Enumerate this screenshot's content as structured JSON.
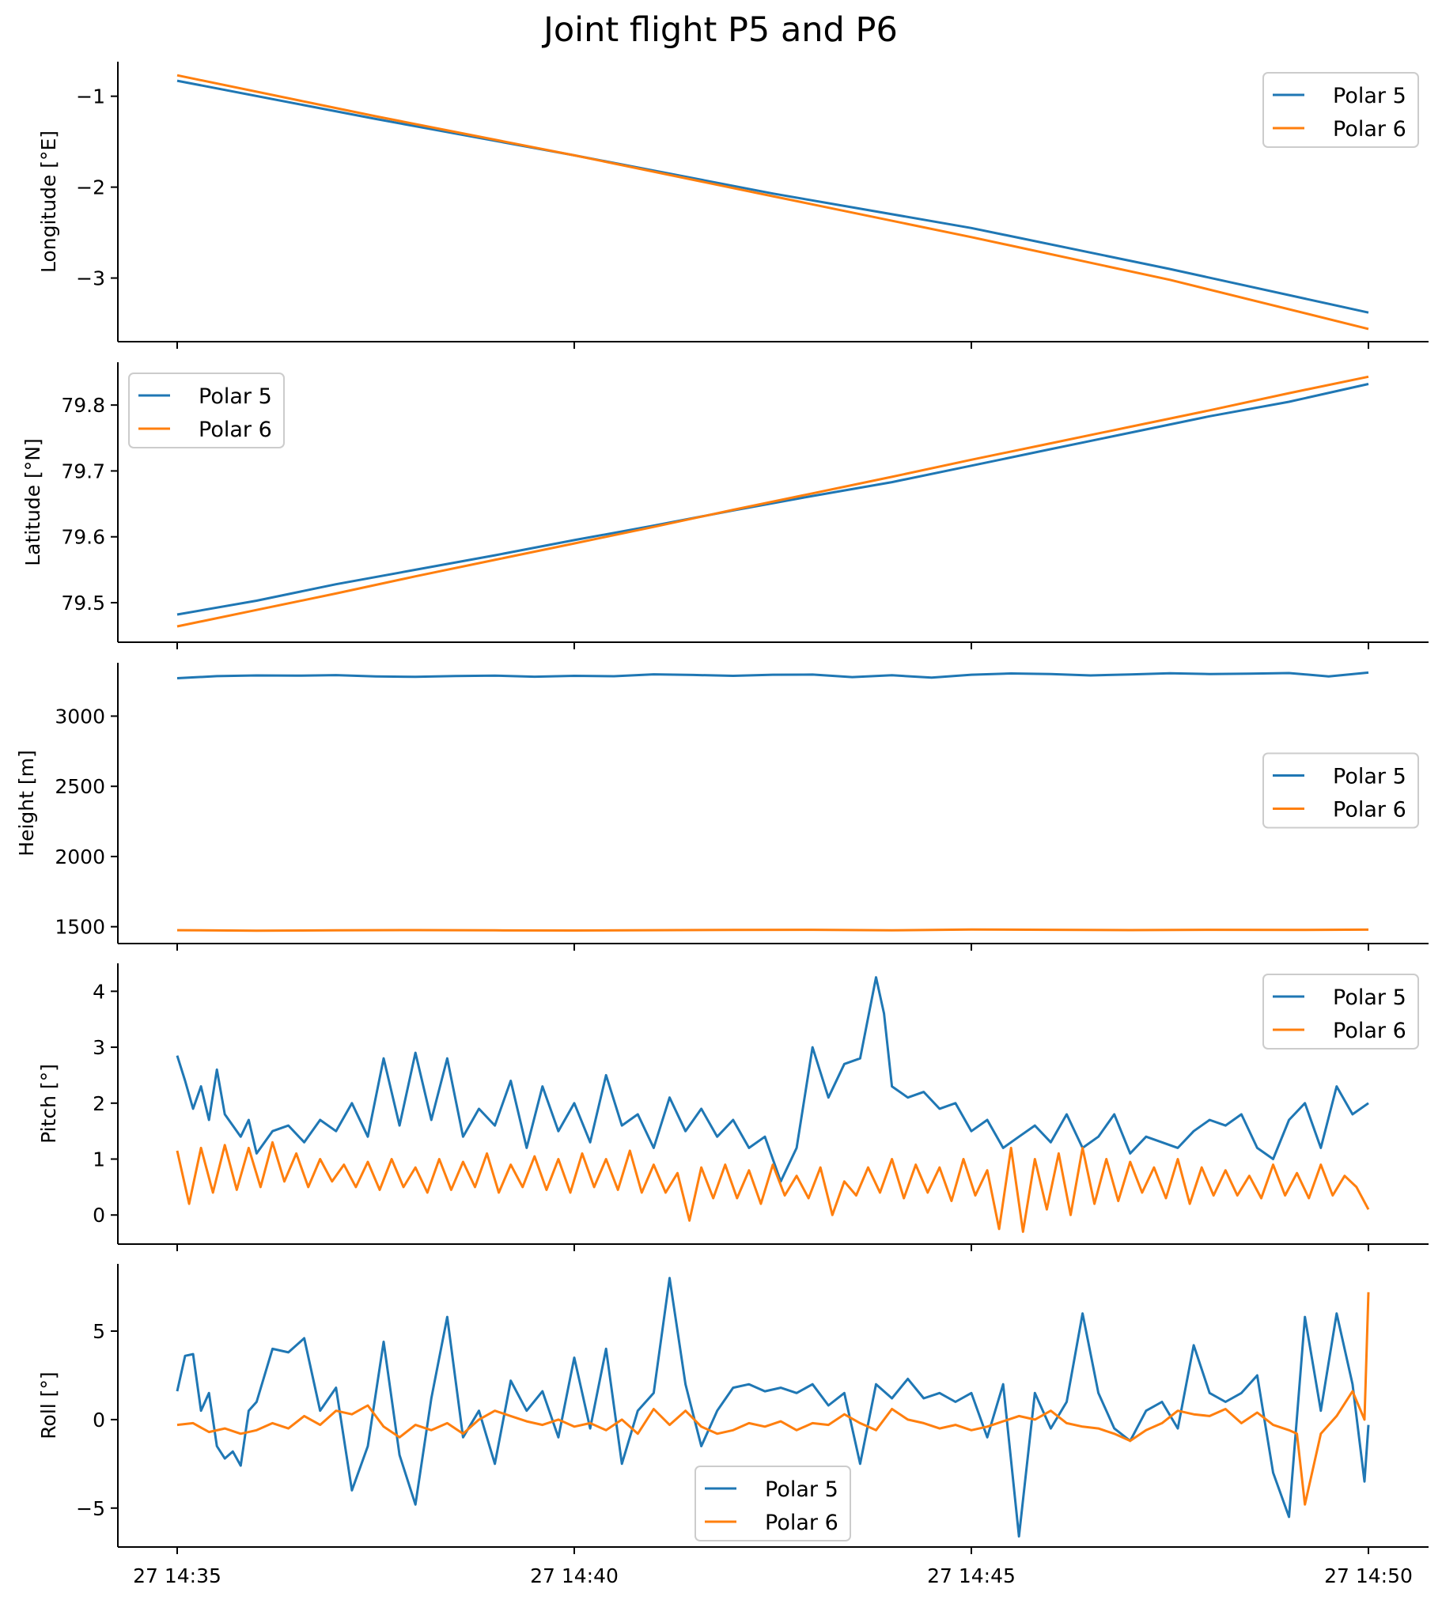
{
  "figure": {
    "title": "Joint flight P5 and P6"
  },
  "colors": {
    "polar5": "#1f77b4",
    "polar6": "#ff7f0e"
  },
  "x_axis": {
    "type": "time",
    "range": [
      "27 14:35",
      "27 14:50"
    ],
    "tick_labels": [
      "27 14:35",
      "27 14:40",
      "27 14:45",
      "27 14:50"
    ],
    "tick_values": [
      0,
      5,
      10,
      15
    ]
  },
  "chart_data": [
    {
      "type": "line",
      "ylabel": "Longitude [°E]",
      "ylim": [
        -3.7,
        -0.62
      ],
      "yticks": [
        -3,
        -2,
        -1
      ],
      "ytick_labels": [
        "−3",
        "−2",
        "−1"
      ],
      "legend": "top-right",
      "series": [
        {
          "name": "Polar 5",
          "x": [
            0,
            2.5,
            5,
            7.5,
            10,
            12.5,
            15
          ],
          "values": [
            -0.83,
            -1.25,
            -1.65,
            -2.07,
            -2.45,
            -2.9,
            -3.38
          ]
        },
        {
          "name": "Polar 6",
          "x": [
            0,
            2.5,
            5,
            7.5,
            10,
            12.5,
            15
          ],
          "values": [
            -0.77,
            -1.22,
            -1.65,
            -2.1,
            -2.55,
            -3.02,
            -3.56
          ]
        }
      ]
    },
    {
      "type": "line",
      "ylabel": "Latitude [°N]",
      "ylim": [
        79.44,
        79.865
      ],
      "yticks": [
        79.5,
        79.6,
        79.7,
        79.8
      ],
      "ytick_labels": [
        "79.5",
        "79.6",
        "79.7",
        "79.8"
      ],
      "legend": "top-left",
      "series": [
        {
          "name": "Polar 5",
          "x": [
            0,
            1,
            2,
            3,
            4,
            5,
            6,
            7,
            8,
            9,
            10,
            11,
            12,
            13,
            14,
            15
          ],
          "values": [
            79.482,
            79.503,
            79.528,
            79.55,
            79.572,
            79.595,
            79.617,
            79.64,
            79.662,
            79.683,
            79.708,
            79.733,
            79.758,
            79.783,
            79.805,
            79.832
          ]
        },
        {
          "name": "Polar 6",
          "x": [
            0,
            1,
            2,
            3,
            4,
            5,
            6,
            7,
            8,
            9,
            10,
            11,
            12,
            13,
            14,
            15
          ],
          "values": [
            79.464,
            79.489,
            79.514,
            79.54,
            79.565,
            79.59,
            79.615,
            79.641,
            79.666,
            79.691,
            79.717,
            79.742,
            79.767,
            79.792,
            79.818,
            79.843
          ]
        }
      ]
    },
    {
      "type": "line",
      "ylabel": "Height [m]",
      "ylim": [
        1380,
        3380
      ],
      "yticks": [
        1500,
        2000,
        2500,
        3000
      ],
      "ytick_labels": [
        "1500",
        "2000",
        "2500",
        "3000"
      ],
      "legend": "center-right",
      "series": [
        {
          "name": "Polar 5",
          "x": [
            0,
            0.5,
            1,
            1.5,
            2,
            2.5,
            3,
            3.5,
            4,
            4.5,
            5,
            5.5,
            6,
            6.5,
            7,
            7.5,
            8,
            8.5,
            9,
            9.5,
            10,
            10.5,
            11,
            11.5,
            12,
            12.5,
            13,
            13.5,
            14,
            14.5,
            15
          ],
          "values": [
            3270,
            3285,
            3290,
            3288,
            3292,
            3283,
            3280,
            3286,
            3289,
            3281,
            3287,
            3284,
            3298,
            3293,
            3287,
            3295,
            3296,
            3278,
            3291,
            3274,
            3295,
            3304,
            3300,
            3290,
            3297,
            3305,
            3300,
            3302,
            3307,
            3283,
            3310
          ]
        },
        {
          "name": "Polar 6",
          "x": [
            0,
            1,
            2,
            3,
            4,
            5,
            6,
            7,
            8,
            9,
            10,
            11,
            12,
            13,
            14,
            15
          ],
          "values": [
            1475,
            1472,
            1474,
            1476,
            1474,
            1473,
            1475,
            1477,
            1478,
            1474,
            1480,
            1478,
            1476,
            1478,
            1477,
            1479
          ]
        }
      ]
    },
    {
      "type": "line",
      "ylabel": "Pitch [°]",
      "ylim": [
        -0.52,
        4.5
      ],
      "yticks": [
        0,
        1,
        2,
        3,
        4
      ],
      "ytick_labels": [
        "0",
        "1",
        "2",
        "3",
        "4"
      ],
      "legend": "top-right",
      "series": [
        {
          "name": "Polar 5",
          "x": [
            0,
            0.1,
            0.2,
            0.3,
            0.4,
            0.5,
            0.6,
            0.7,
            0.8,
            0.9,
            1.0,
            1.2,
            1.4,
            1.6,
            1.8,
            2.0,
            2.2,
            2.4,
            2.6,
            2.8,
            3.0,
            3.2,
            3.4,
            3.6,
            3.8,
            4.0,
            4.2,
            4.4,
            4.6,
            4.8,
            5.0,
            5.2,
            5.4,
            5.6,
            5.8,
            6.0,
            6.2,
            6.4,
            6.6,
            6.8,
            7.0,
            7.2,
            7.4,
            7.6,
            7.8,
            8.0,
            8.2,
            8.4,
            8.6,
            8.8,
            8.9,
            9.0,
            9.2,
            9.4,
            9.6,
            9.8,
            10.0,
            10.2,
            10.4,
            10.6,
            10.8,
            11.0,
            11.2,
            11.4,
            11.6,
            11.8,
            12.0,
            12.2,
            12.4,
            12.6,
            12.8,
            13.0,
            13.2,
            13.4,
            13.6,
            13.8,
            14.0,
            14.2,
            14.4,
            14.6,
            14.8,
            15.0
          ],
          "values": [
            2.85,
            2.4,
            1.9,
            2.3,
            1.7,
            2.6,
            1.8,
            1.6,
            1.4,
            1.7,
            1.1,
            1.5,
            1.6,
            1.3,
            1.7,
            1.5,
            2.0,
            1.4,
            2.8,
            1.6,
            2.9,
            1.7,
            2.8,
            1.4,
            1.9,
            1.6,
            2.4,
            1.2,
            2.3,
            1.5,
            2.0,
            1.3,
            2.5,
            1.6,
            1.8,
            1.2,
            2.1,
            1.5,
            1.9,
            1.4,
            1.7,
            1.2,
            1.4,
            0.6,
            1.2,
            3.0,
            2.1,
            2.7,
            2.8,
            4.25,
            3.6,
            2.3,
            2.1,
            2.2,
            1.9,
            2.0,
            1.5,
            1.7,
            1.2,
            1.4,
            1.6,
            1.3,
            1.8,
            1.2,
            1.4,
            1.8,
            1.1,
            1.4,
            1.3,
            1.2,
            1.5,
            1.7,
            1.6,
            1.8,
            1.2,
            1.0,
            1.7,
            2.0,
            1.2,
            2.3,
            1.8,
            2.0
          ]
        },
        {
          "name": "Polar 6",
          "x": [
            0,
            0.15,
            0.3,
            0.45,
            0.6,
            0.75,
            0.9,
            1.05,
            1.2,
            1.35,
            1.5,
            1.65,
            1.8,
            1.95,
            2.1,
            2.25,
            2.4,
            2.55,
            2.7,
            2.85,
            3.0,
            3.15,
            3.3,
            3.45,
            3.6,
            3.75,
            3.9,
            4.05,
            4.2,
            4.35,
            4.5,
            4.65,
            4.8,
            4.95,
            5.1,
            5.25,
            5.4,
            5.55,
            5.7,
            5.85,
            6.0,
            6.15,
            6.3,
            6.45,
            6.6,
            6.75,
            6.9,
            7.05,
            7.2,
            7.35,
            7.5,
            7.65,
            7.8,
            7.95,
            8.1,
            8.25,
            8.4,
            8.55,
            8.7,
            8.85,
            9.0,
            9.15,
            9.3,
            9.45,
            9.6,
            9.75,
            9.9,
            10.05,
            10.2,
            10.35,
            10.5,
            10.65,
            10.8,
            10.95,
            11.1,
            11.25,
            11.4,
            11.55,
            11.7,
            11.85,
            12.0,
            12.15,
            12.3,
            12.45,
            12.6,
            12.75,
            12.9,
            13.05,
            13.2,
            13.35,
            13.5,
            13.65,
            13.8,
            13.95,
            14.1,
            14.25,
            14.4,
            14.55,
            14.7,
            14.85,
            15.0
          ],
          "values": [
            1.15,
            0.2,
            1.2,
            0.4,
            1.25,
            0.45,
            1.2,
            0.5,
            1.3,
            0.6,
            1.1,
            0.5,
            1.0,
            0.6,
            0.9,
            0.5,
            0.95,
            0.45,
            1.0,
            0.5,
            0.85,
            0.4,
            1.0,
            0.45,
            0.95,
            0.5,
            1.1,
            0.4,
            0.9,
            0.5,
            1.05,
            0.45,
            1.0,
            0.4,
            1.1,
            0.5,
            1.0,
            0.45,
            1.15,
            0.4,
            0.9,
            0.4,
            0.75,
            -0.1,
            0.85,
            0.3,
            0.9,
            0.3,
            0.8,
            0.2,
            0.9,
            0.35,
            0.7,
            0.3,
            0.85,
            0.0,
            0.6,
            0.35,
            0.85,
            0.4,
            1.0,
            0.3,
            0.9,
            0.4,
            0.85,
            0.25,
            1.0,
            0.35,
            0.8,
            -0.25,
            1.2,
            -0.3,
            1.0,
            0.1,
            1.1,
            0.0,
            1.2,
            0.2,
            1.0,
            0.25,
            0.95,
            0.4,
            0.85,
            0.3,
            1.0,
            0.2,
            0.85,
            0.35,
            0.8,
            0.35,
            0.7,
            0.3,
            0.9,
            0.35,
            0.75,
            0.3,
            0.9,
            0.35,
            0.7,
            0.5,
            0.1
          ]
        }
      ]
    },
    {
      "type": "line",
      "ylabel": "Roll [°]",
      "ylim": [
        -7.2,
        8.8
      ],
      "yticks": [
        -5,
        0,
        5
      ],
      "ytick_labels": [
        "−5",
        "0",
        "5"
      ],
      "legend": "lower-center",
      "series": [
        {
          "name": "Polar 5",
          "x": [
            0,
            0.1,
            0.2,
            0.3,
            0.4,
            0.5,
            0.6,
            0.7,
            0.8,
            0.9,
            1.0,
            1.2,
            1.4,
            1.6,
            1.8,
            2.0,
            2.2,
            2.4,
            2.6,
            2.8,
            3.0,
            3.2,
            3.4,
            3.6,
            3.8,
            4.0,
            4.2,
            4.4,
            4.6,
            4.8,
            5.0,
            5.2,
            5.4,
            5.6,
            5.8,
            6.0,
            6.2,
            6.4,
            6.6,
            6.8,
            7.0,
            7.2,
            7.4,
            7.6,
            7.8,
            8.0,
            8.2,
            8.4,
            8.6,
            8.8,
            9.0,
            9.2,
            9.4,
            9.6,
            9.8,
            10.0,
            10.2,
            10.4,
            10.6,
            10.8,
            11.0,
            11.2,
            11.4,
            11.6,
            11.8,
            12.0,
            12.2,
            12.4,
            12.6,
            12.8,
            13.0,
            13.2,
            13.4,
            13.6,
            13.8,
            14.0,
            14.2,
            14.4,
            14.6,
            14.8,
            14.95,
            15.0
          ],
          "values": [
            1.6,
            3.6,
            3.7,
            0.5,
            1.5,
            -1.5,
            -2.2,
            -1.8,
            -2.6,
            0.5,
            1.0,
            4.0,
            3.8,
            4.6,
            0.5,
            1.8,
            -4.0,
            -1.5,
            4.4,
            -2.0,
            -4.8,
            1.2,
            5.8,
            -1.0,
            0.5,
            -2.5,
            2.2,
            0.5,
            1.6,
            -1.0,
            3.5,
            -0.5,
            4.0,
            -2.5,
            0.5,
            1.5,
            8.0,
            2.0,
            -1.5,
            0.5,
            1.8,
            2.0,
            1.6,
            1.8,
            1.5,
            2.0,
            0.8,
            1.5,
            -2.5,
            2.0,
            1.2,
            2.3,
            1.2,
            1.5,
            1.0,
            1.5,
            -1.0,
            2.0,
            -6.6,
            1.5,
            -0.5,
            1.0,
            6.0,
            1.5,
            -0.5,
            -1.2,
            0.5,
            1.0,
            -0.5,
            4.2,
            1.5,
            1.0,
            1.5,
            2.5,
            -3.0,
            -5.5,
            5.8,
            0.5,
            6.0,
            2.0,
            -3.5,
            -0.3
          ]
        },
        {
          "name": "Polar 6",
          "x": [
            0,
            0.2,
            0.4,
            0.6,
            0.8,
            1.0,
            1.2,
            1.4,
            1.6,
            1.8,
            2.0,
            2.2,
            2.4,
            2.6,
            2.8,
            3.0,
            3.2,
            3.4,
            3.6,
            3.8,
            4.0,
            4.2,
            4.4,
            4.6,
            4.8,
            5.0,
            5.2,
            5.4,
            5.6,
            5.8,
            6.0,
            6.2,
            6.4,
            6.6,
            6.8,
            7.0,
            7.2,
            7.4,
            7.6,
            7.8,
            8.0,
            8.2,
            8.4,
            8.6,
            8.8,
            9.0,
            9.2,
            9.4,
            9.6,
            9.8,
            10.0,
            10.2,
            10.4,
            10.6,
            10.8,
            11.0,
            11.2,
            11.4,
            11.6,
            11.8,
            12.0,
            12.2,
            12.4,
            12.6,
            12.8,
            13.0,
            13.2,
            13.4,
            13.6,
            13.8,
            14.0,
            14.1,
            14.2,
            14.4,
            14.6,
            14.8,
            14.95,
            15.0
          ],
          "values": [
            -0.3,
            -0.2,
            -0.7,
            -0.5,
            -0.8,
            -0.6,
            -0.2,
            -0.5,
            0.2,
            -0.3,
            0.5,
            0.3,
            0.8,
            -0.4,
            -1.0,
            -0.3,
            -0.6,
            -0.2,
            -0.8,
            0.0,
            0.5,
            0.2,
            -0.1,
            -0.3,
            0.0,
            -0.4,
            -0.2,
            -0.6,
            0.0,
            -0.8,
            0.6,
            -0.3,
            0.5,
            -0.4,
            -0.8,
            -0.6,
            -0.2,
            -0.4,
            -0.1,
            -0.6,
            -0.2,
            -0.3,
            0.3,
            -0.2,
            -0.6,
            0.6,
            0.0,
            -0.2,
            -0.5,
            -0.3,
            -0.6,
            -0.4,
            -0.1,
            0.2,
            0.0,
            0.5,
            -0.2,
            -0.4,
            -0.5,
            -0.8,
            -1.2,
            -0.6,
            -0.2,
            0.5,
            0.3,
            0.2,
            0.6,
            -0.2,
            0.4,
            -0.3,
            -0.6,
            -0.8,
            -4.8,
            -0.8,
            0.2,
            1.6,
            0.0,
            7.2
          ]
        }
      ]
    }
  ]
}
